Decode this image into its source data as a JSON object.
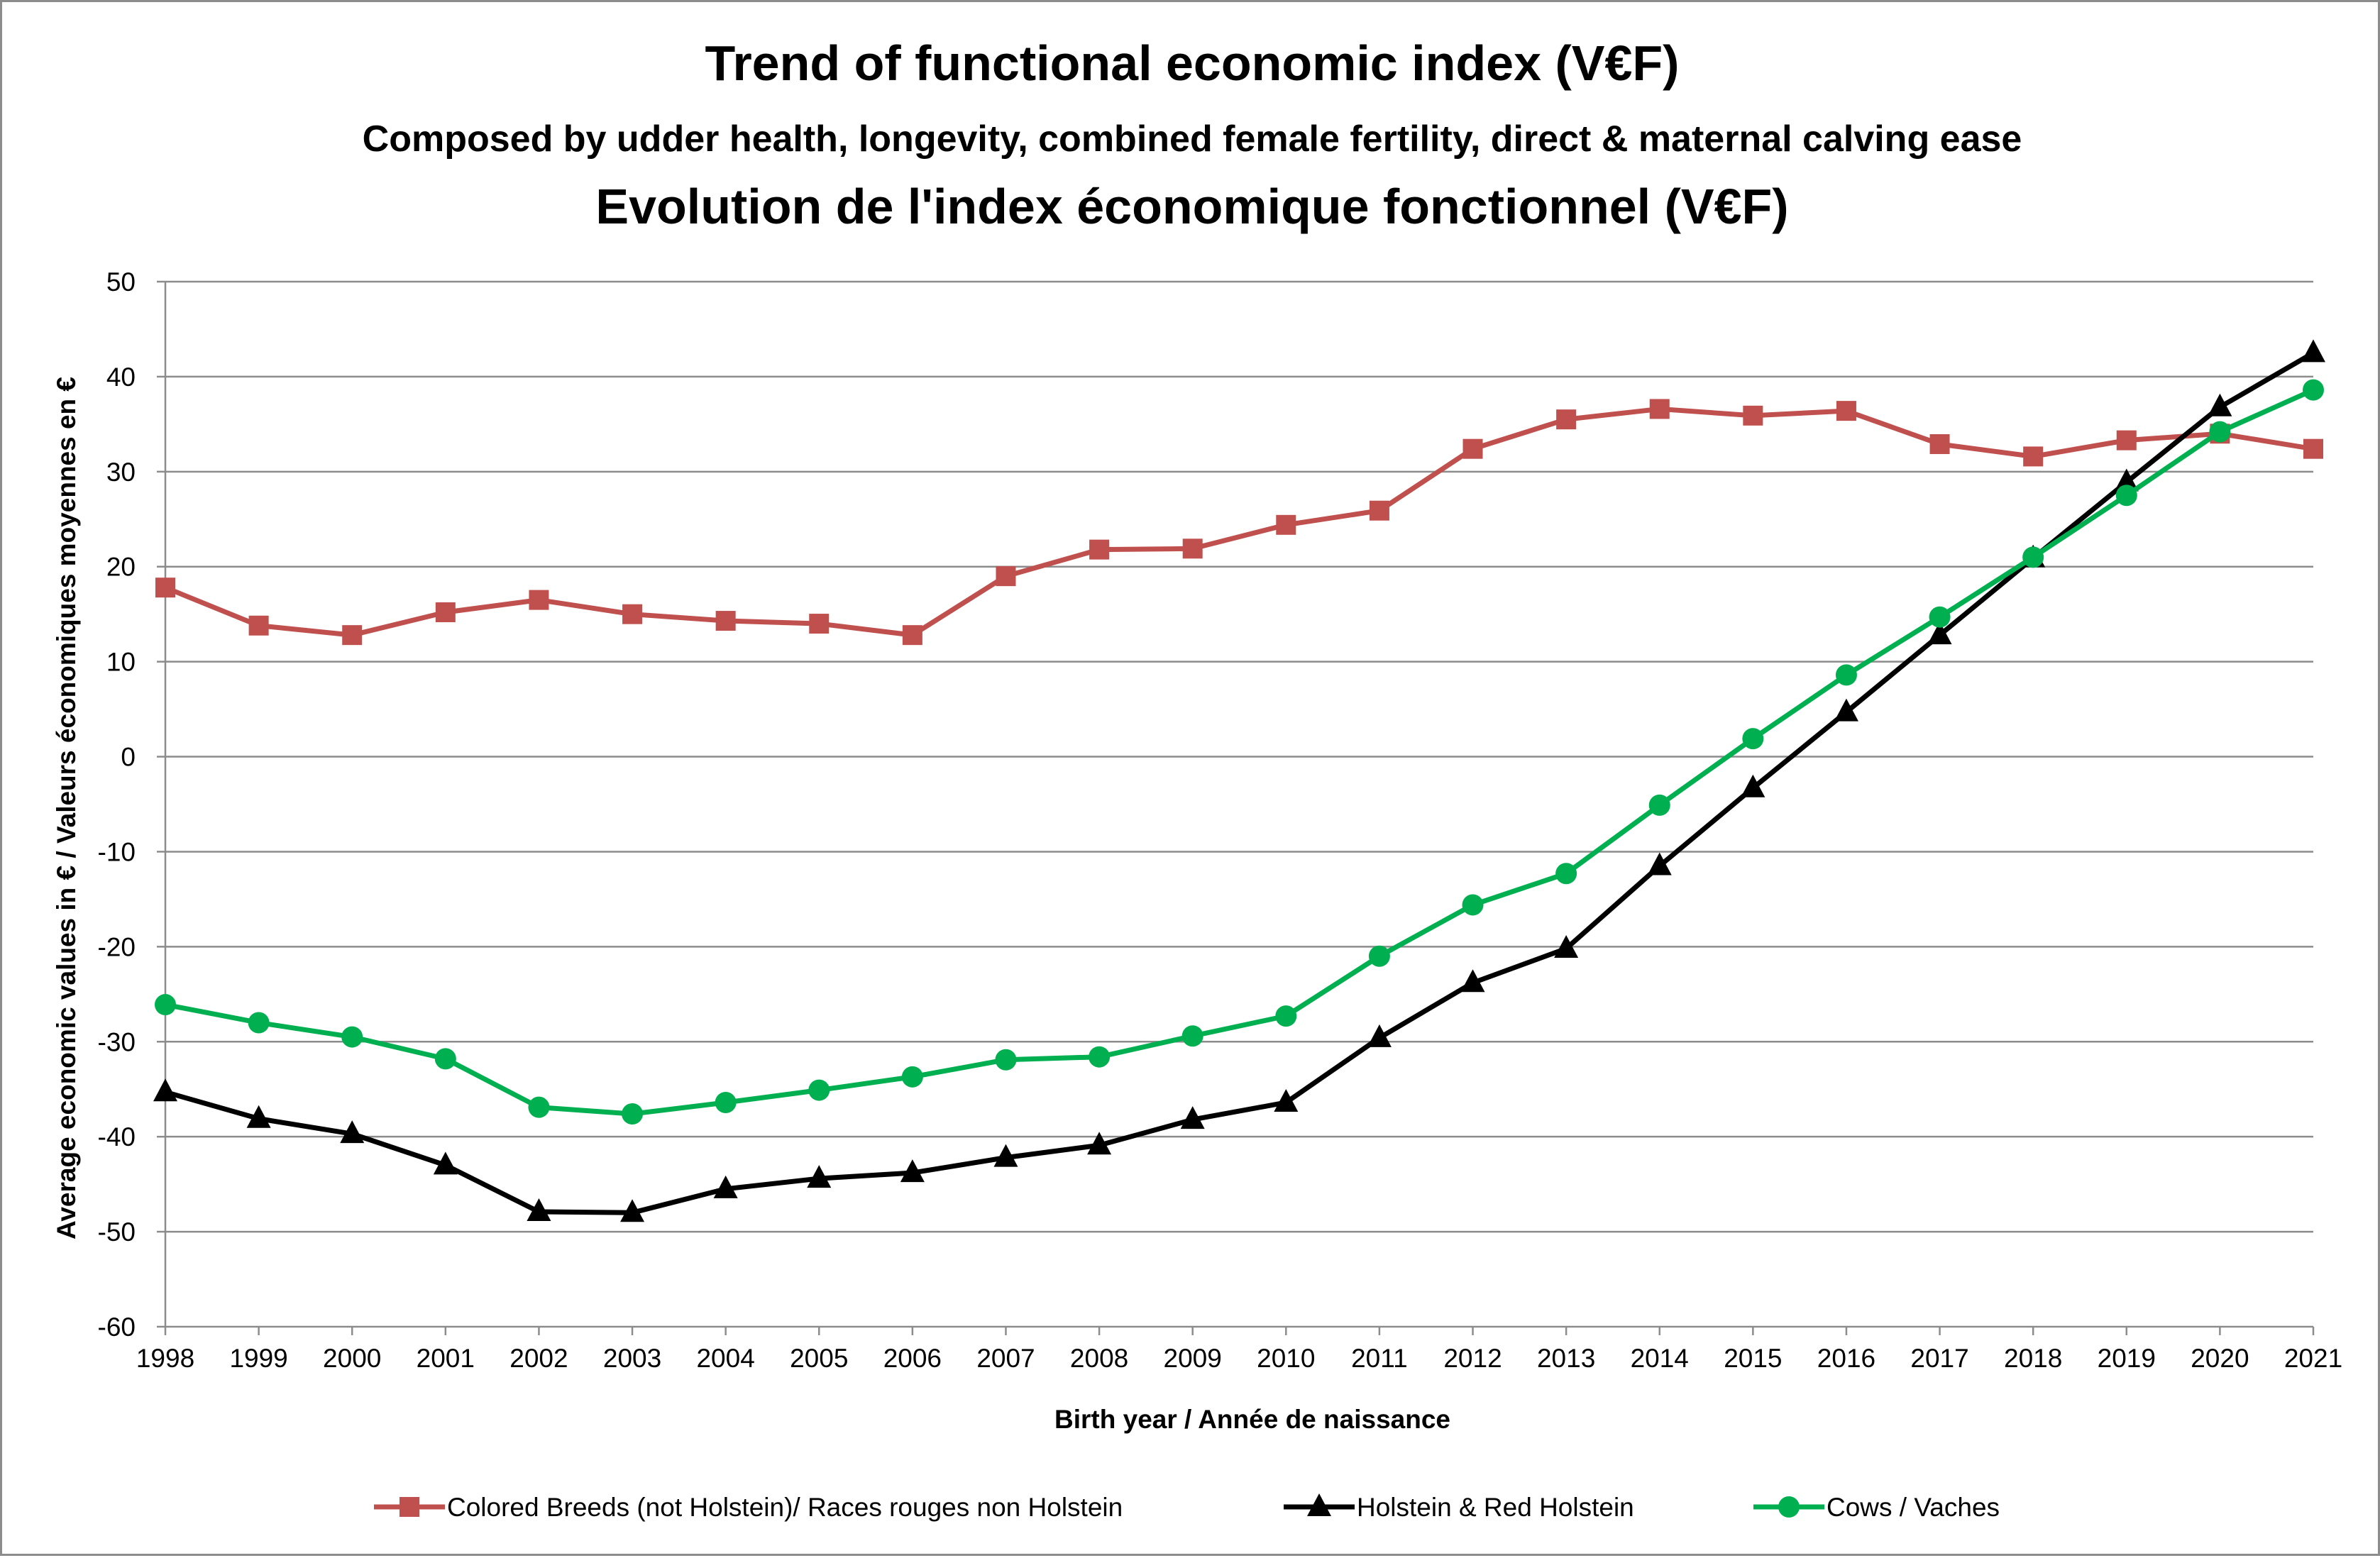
{
  "chart_data": {
    "type": "line",
    "title": "Trend of functional economic index (V€F)",
    "subtitle": "Composed by udder health, longevity, combined female fertility, direct & maternal calving ease",
    "title2": "Evolution de l'index économique fonctionnel (V€F)",
    "xlabel": "Birth year / Année de naissance",
    "ylabel": "Average economic values in € / Valeurs économiques moyennes en €",
    "ylim": [
      -60,
      50
    ],
    "yticks": [
      "50",
      "40",
      "30",
      "20",
      "10",
      "0",
      "-10",
      "-20",
      "-30",
      "-40",
      "-50",
      "-60"
    ],
    "grid": "horizontal",
    "legend_position": "bottom",
    "categories": [
      "1998",
      "1999",
      "2000",
      "2001",
      "2002",
      "2003",
      "2004",
      "2005",
      "2006",
      "2007",
      "2008",
      "2009",
      "2010",
      "2011",
      "2012",
      "2013",
      "2014",
      "2015",
      "2016",
      "2017",
      "2018",
      "2019",
      "2020",
      "2021"
    ],
    "series": [
      {
        "name": "Colored Breeds (not Holstein)/ Races rouges non Holstein",
        "color": "#c0504d",
        "marker": "square",
        "values": [
          17.8,
          13.8,
          12.8,
          15.2,
          16.5,
          15.0,
          14.3,
          14.0,
          12.8,
          19.0,
          21.8,
          21.9,
          24.4,
          25.9,
          32.4,
          35.5,
          36.6,
          35.9,
          36.4,
          32.9,
          31.6,
          33.3,
          34.0,
          32.4
        ]
      },
      {
        "name": "Holstein & Red Holstein",
        "color": "#000000",
        "marker": "triangle",
        "values": [
          -35.3,
          -38.1,
          -39.7,
          -43.0,
          -47.9,
          -48.0,
          -45.5,
          -44.4,
          -43.8,
          -42.2,
          -40.9,
          -38.2,
          -36.4,
          -29.6,
          -23.8,
          -20.2,
          -11.5,
          -3.3,
          4.7,
          12.8,
          20.9,
          28.9,
          36.8,
          42.5
        ]
      },
      {
        "name": "Cows / Vaches",
        "color": "#00b050",
        "marker": "circle",
        "values": [
          -26.1,
          -28.0,
          -29.5,
          -31.8,
          -36.9,
          -37.6,
          -36.4,
          -35.1,
          -33.7,
          -31.9,
          -31.6,
          -29.4,
          -27.3,
          -21.0,
          -15.6,
          -12.3,
          -5.1,
          1.9,
          8.6,
          14.7,
          21.0,
          27.5,
          34.2,
          38.6
        ]
      }
    ]
  }
}
